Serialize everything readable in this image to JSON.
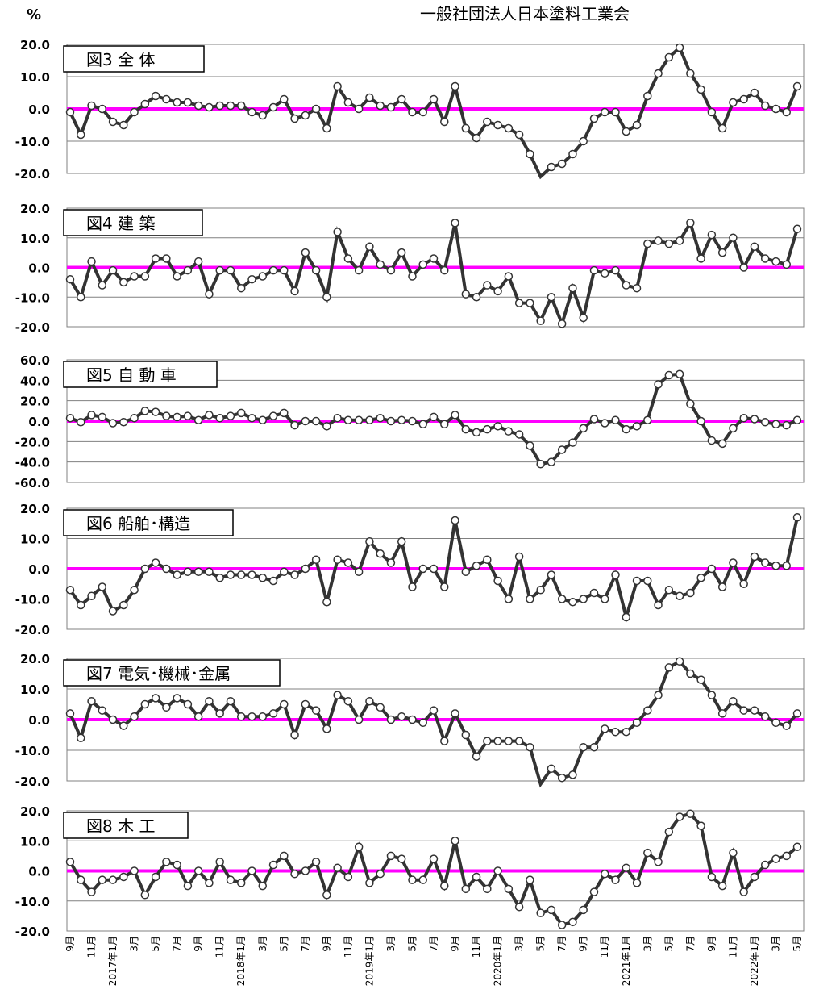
{
  "header": {
    "unit_label": "%",
    "publisher": "一般社団法人日本塗料工業会"
  },
  "x_axis": {
    "labels": [
      "9月",
      "",
      "11月",
      "",
      "2017年1月",
      "",
      "3月",
      "",
      "5月",
      "",
      "7月",
      "",
      "9月",
      "",
      "11月",
      "",
      "2018年1月",
      "",
      "3月",
      "",
      "5月",
      "",
      "7月",
      "",
      "9月",
      "",
      "11月",
      "",
      "2019年1月",
      "",
      "3月",
      "",
      "5月",
      "",
      "7月",
      "",
      "9月",
      "",
      "11月",
      "",
      "2020年1月",
      "",
      "3月",
      "",
      "5月",
      "",
      "7月",
      "",
      "9月",
      "",
      "11月",
      "",
      "2021年1月",
      "",
      "3月",
      "",
      "5月",
      "",
      "7月",
      "",
      "9月",
      "",
      "11月",
      "",
      "2022年1月",
      "",
      "3月",
      "",
      "5月"
    ]
  },
  "colors": {
    "series_line": "#333333",
    "marker_fill": "#ffffff",
    "zero_line": "#ff00ff",
    "grid": "#808080"
  },
  "chart_data": [
    {
      "type": "line",
      "title": "図3 全 体",
      "ylim": [
        -20,
        20
      ],
      "ticks": [
        "20.0",
        "10.0",
        "0.0",
        "-10.0",
        "-20.0"
      ],
      "series": [
        {
          "values": [
            -1,
            -8,
            1,
            0,
            -4,
            -5,
            -1,
            1.5,
            4,
            3,
            2,
            2,
            1,
            0.5,
            1,
            1,
            1,
            -1,
            -2,
            0.5,
            3,
            -3,
            -2,
            0,
            -6,
            7,
            2,
            0,
            3.5,
            1,
            0.5,
            3,
            -1,
            -1,
            3,
            -4,
            7,
            -6,
            -9,
            -4,
            -5,
            -6,
            -8,
            -14,
            -21,
            -18,
            -17,
            -14,
            -10,
            -3,
            -1,
            -1,
            -7,
            -5,
            4,
            11,
            16,
            19,
            11,
            6,
            -1,
            -6,
            2,
            3,
            5,
            1,
            0,
            -1,
            7
          ]
        }
      ]
    },
    {
      "type": "line",
      "title": "図4 建 築",
      "ylim": [
        -20,
        20
      ],
      "ticks": [
        "20.0",
        "10.0",
        "0.0",
        "-10.0",
        "-20.0"
      ],
      "series": [
        {
          "values": [
            -4,
            -10,
            2,
            -6,
            -1,
            -5,
            -3,
            -3,
            3,
            3,
            -3,
            -1,
            2,
            -9,
            -1,
            -1,
            -7,
            -4,
            -3,
            -1,
            -1,
            -8,
            5,
            -1,
            -10,
            12,
            3,
            -1,
            7,
            1,
            -1,
            5,
            -3,
            1,
            3,
            -1,
            15,
            -9,
            -10,
            -6,
            -8,
            -3,
            -12,
            -12,
            -18,
            -10,
            -19,
            -7,
            -17,
            -1,
            -2,
            -1,
            -6,
            -7,
            8,
            9,
            8,
            9,
            15,
            3,
            11,
            5,
            10,
            0,
            7,
            3,
            2,
            1,
            13
          ]
        }
      ]
    },
    {
      "type": "line",
      "title": "図5 自 動 車",
      "ylim": [
        -60,
        60
      ],
      "ticks": [
        "60.0",
        "40.0",
        "20.0",
        "0.0",
        "-20.0",
        "-40.0",
        "-60.0"
      ],
      "series": [
        {
          "values": [
            3,
            -1,
            6,
            4,
            -2,
            -1,
            3,
            10,
            9,
            5,
            4,
            5,
            1,
            6,
            3,
            5,
            8,
            3,
            1,
            5,
            8,
            -4,
            0,
            0,
            -5,
            3,
            1,
            1,
            1,
            3,
            0,
            1,
            0,
            -3,
            4,
            -3,
            6,
            -8,
            -11,
            -8,
            -5,
            -10,
            -13,
            -24,
            -42,
            -40,
            -28,
            -21,
            -7,
            2,
            -2,
            1,
            -8,
            -5,
            1,
            36,
            45,
            46,
            17,
            0,
            -19,
            -22,
            -7,
            3,
            2,
            -1,
            -3,
            -4,
            1
          ]
        }
      ]
    },
    {
      "type": "line",
      "title": "図6 船舶･構造",
      "ylim": [
        -20,
        20
      ],
      "ticks": [
        "20.0",
        "10.0",
        "0.0",
        "-10.0",
        "-20.0"
      ],
      "series": [
        {
          "values": [
            -7,
            -12,
            -9,
            -6,
            -14,
            -12,
            -7,
            0,
            2,
            0,
            -2,
            -1,
            -1,
            -1,
            -3,
            -2,
            -2,
            -2,
            -3,
            -4,
            -1,
            -2,
            0,
            3,
            -11,
            3,
            2,
            -1,
            9,
            5,
            2,
            9,
            -6,
            0,
            0,
            -6,
            16,
            -1,
            1,
            3,
            -4,
            -10,
            4,
            -10,
            -7,
            -2,
            -10,
            -11,
            -10,
            -8,
            -10,
            -2,
            -16,
            -4,
            -4,
            -12,
            -7,
            -9,
            -8,
            -3,
            0,
            -6,
            2,
            -5,
            4,
            2,
            1,
            1,
            17
          ]
        }
      ]
    },
    {
      "type": "line",
      "title": "図7 電気･機械･金属",
      "ylim": [
        -20,
        20
      ],
      "ticks": [
        "20.0",
        "10.0",
        "0.0",
        "-10.0",
        "-20.0"
      ],
      "series": [
        {
          "values": [
            2,
            -6,
            6,
            3,
            0,
            -2,
            1,
            5,
            7,
            4,
            7,
            5,
            1,
            6,
            2,
            6,
            1,
            1,
            1,
            2,
            5,
            -5,
            5,
            3,
            -3,
            8,
            6,
            0,
            6,
            4,
            0,
            1,
            0,
            -1,
            3,
            -7,
            2,
            -5,
            -12,
            -7,
            -7,
            -7,
            -7,
            -9,
            -21,
            -16,
            -19,
            -18,
            -9,
            -9,
            -3,
            -4,
            -4,
            -1,
            3,
            8,
            17,
            19,
            15,
            13,
            8,
            2,
            6,
            3,
            3,
            1,
            -1,
            -2,
            2
          ]
        }
      ]
    },
    {
      "type": "line",
      "title": "図8 木 工",
      "ylim": [
        -20,
        20
      ],
      "ticks": [
        "20.0",
        "10.0",
        "0.0",
        "-10.0",
        "-20.0"
      ],
      "series": [
        {
          "values": [
            3,
            -3,
            -7,
            -3,
            -3,
            -2,
            0,
            -8,
            -2,
            3,
            2,
            -5,
            0,
            -4,
            3,
            -3,
            -4,
            0,
            -5,
            2,
            5,
            -1,
            0,
            3,
            -8,
            1,
            -2,
            8,
            -4,
            -1,
            5,
            4,
            -3,
            -3,
            4,
            -5,
            10,
            -6,
            -2,
            -6,
            0,
            -6,
            -12,
            -3,
            -14,
            -13,
            -18,
            -17,
            -13,
            -7,
            -1,
            -3,
            1,
            -4,
            6,
            3,
            13,
            18,
            19,
            15,
            -2,
            -5,
            6,
            -7,
            -2,
            2,
            4,
            5,
            8
          ]
        }
      ]
    }
  ]
}
